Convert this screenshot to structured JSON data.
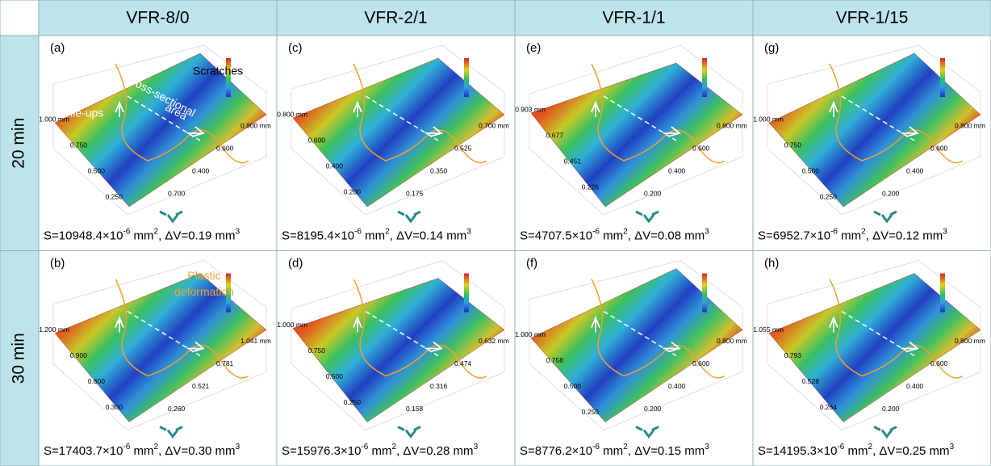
{
  "header": {
    "columns": [
      "VFR-8/0",
      "VFR-2/1",
      "VFR-1/1",
      "VFR-1/15"
    ],
    "rows": [
      "20 min",
      "30 min"
    ]
  },
  "panels": [
    {
      "label": "(a)",
      "caption": [
        "S=10948.4×10",
        "-6",
        " mm",
        "2",
        ", ΔV=0.19 mm",
        "3"
      ],
      "left_ticks": [
        "1.000 mm",
        "0.750",
        "0.500",
        "0.250"
      ],
      "right_ticks": [
        "0.800 mm",
        "0.600",
        "0.400",
        "0.700"
      ],
      "annotations": [
        "Scratches",
        "Cross-sectional",
        "area",
        "Pile-ups"
      ]
    },
    {
      "label": "(c)",
      "caption": [
        "S=8195.4×10",
        "-6",
        " mm",
        "2",
        ", ΔV=0.14 mm",
        "3"
      ],
      "left_ticks": [
        "0.800 mm",
        "0.600",
        "0.400",
        "0.200"
      ],
      "right_ticks": [
        "0.700 mm",
        "0.525",
        "0.350",
        "0.175"
      ],
      "annotations": []
    },
    {
      "label": "(e)",
      "caption": [
        "S=4707.5×10",
        "-6",
        " mm",
        "2",
        ", ΔV=0.08 mm",
        "3"
      ],
      "left_ticks": [
        "0.903 mm",
        "0.677",
        "0.451",
        "0.226"
      ],
      "right_ticks": [
        "0.800 mm",
        "0.600",
        "0.400",
        "0.200"
      ],
      "annotations": []
    },
    {
      "label": "(g)",
      "caption": [
        "S=6952.7×10",
        "-6",
        " mm",
        "2",
        ", ΔV=0.12 mm",
        "3"
      ],
      "left_ticks": [
        "1.000 mm",
        "0.750",
        "0.500",
        "0.250"
      ],
      "right_ticks": [
        "0.800 mm",
        "0.600",
        "0.400",
        "0.200"
      ],
      "annotations": []
    },
    {
      "label": "(b)",
      "caption": [
        "S=17403.7×10",
        "-6",
        " mm",
        "2",
        ", ΔV=0.30 mm",
        "3"
      ],
      "left_ticks": [
        "1.200 mm",
        "0.900",
        "0.600",
        "0.300"
      ],
      "right_ticks": [
        "1.041 mm",
        "0.781",
        "0.521",
        "0.260"
      ],
      "annotations": [
        "Plastic",
        "deformation"
      ]
    },
    {
      "label": "(d)",
      "caption": [
        "S=15976.3×10",
        "-6",
        " mm",
        "2",
        ", ΔV=0.28 mm",
        "3"
      ],
      "left_ticks": [
        "1.000 mm",
        "0.750",
        "0.500",
        "0.250"
      ],
      "right_ticks": [
        "0.632 mm",
        "0.474",
        "0.316",
        "0.158"
      ],
      "annotations": []
    },
    {
      "label": "(f)",
      "caption": [
        "S=8776.2×10",
        "-6",
        " mm",
        "2",
        ", ΔV=0.15 mm",
        "3"
      ],
      "left_ticks": [
        "1.000 mm",
        "0.758",
        "0.500",
        "0.250"
      ],
      "right_ticks": [
        "0.800 mm",
        "0.600",
        "0.400",
        "0.200"
      ],
      "annotations": []
    },
    {
      "label": "(h)",
      "caption": [
        "S=14195.3×10",
        "-6",
        " mm",
        "2",
        ", ΔV=0.25 mm",
        "3"
      ],
      "left_ticks": [
        "1.055 mm",
        "0.793",
        "0.528",
        "0.264"
      ],
      "right_ticks": [
        "0.800 mm",
        "0.600",
        "0.400",
        "0.200"
      ],
      "annotations": []
    }
  ]
}
